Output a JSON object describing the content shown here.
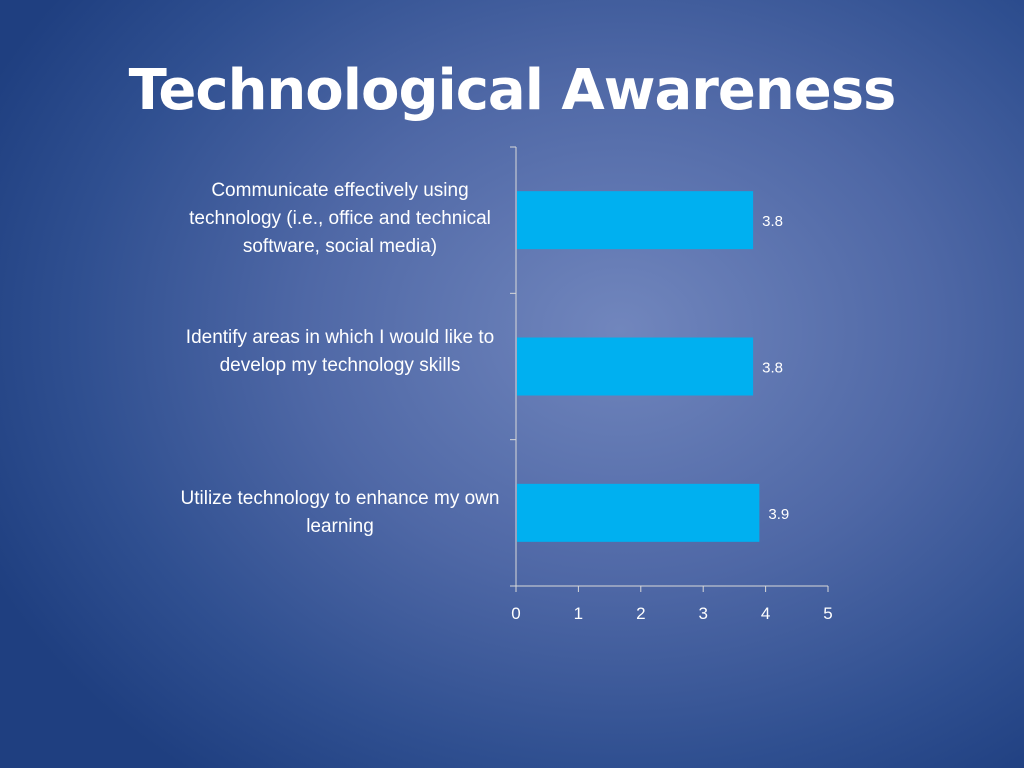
{
  "slide": {
    "title": "Technological Awareness"
  },
  "chart_data": {
    "type": "bar",
    "orientation": "horizontal",
    "categories": [
      "Communicate effectively using technology (i.e., office and technical software, social media)",
      "Identify areas in which I would like to develop my technology skills",
      "Utilize technology to enhance my own learning"
    ],
    "values": [
      3.8,
      3.8,
      3.9
    ],
    "data_labels": [
      "3.8",
      "3.8",
      "3.9"
    ],
    "xlim": [
      0,
      5
    ],
    "ticks": [
      "0",
      "1",
      "2",
      "3",
      "4",
      "5"
    ],
    "grid": false,
    "legend": "none",
    "bar_color": "#00b0f0"
  }
}
